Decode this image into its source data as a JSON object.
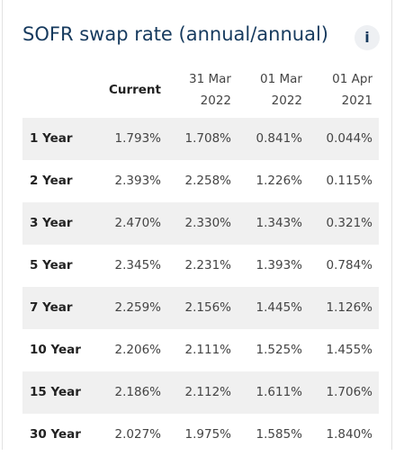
{
  "header": {
    "title": "SOFR swap rate (annual/annual)",
    "info_icon": "i"
  },
  "table": {
    "columns": [
      [
        "Current"
      ],
      [
        "31 Mar",
        "2022"
      ],
      [
        "01 Mar",
        "2022"
      ],
      [
        "01 Apr",
        "2021"
      ]
    ],
    "rows": [
      [
        "1 Year",
        "1.793%",
        "1.708%",
        "0.841%",
        "0.044%"
      ],
      [
        "2 Year",
        "2.393%",
        "2.258%",
        "1.226%",
        "0.115%"
      ],
      [
        "3 Year",
        "2.470%",
        "2.330%",
        "1.343%",
        "0.321%"
      ],
      [
        "5 Year",
        "2.345%",
        "2.231%",
        "1.393%",
        "0.784%"
      ],
      [
        "7 Year",
        "2.259%",
        "2.156%",
        "1.445%",
        "1.126%"
      ],
      [
        "10 Year",
        "2.206%",
        "2.111%",
        "1.525%",
        "1.455%"
      ],
      [
        "15 Year",
        "2.186%",
        "2.112%",
        "1.611%",
        "1.706%"
      ],
      [
        "30 Year",
        "2.027%",
        "1.975%",
        "1.585%",
        "1.840%"
      ]
    ]
  }
}
